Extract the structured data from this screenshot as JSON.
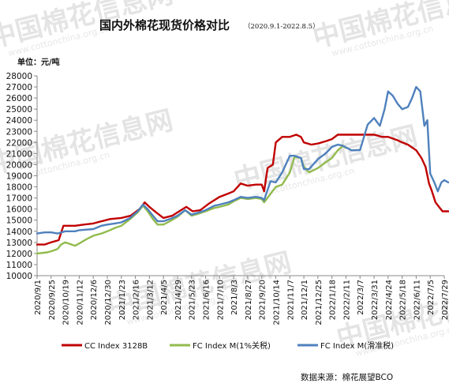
{
  "header": {
    "title": "国内外棉花现货价格对比",
    "subtitle": "（2020.9.1-2022.8.5）",
    "unit_label": "单位：元/吨"
  },
  "source_label": "数据来源：棉花展望BCO",
  "watermark": {
    "brand": "中国棉花信息网",
    "url": "www.cottonchina.org.cn"
  },
  "chart_data": {
    "type": "line",
    "title": "国内外棉花现货价格对比",
    "subtitle": "（2020.9.1-2022.8.5）",
    "ylabel": "单位：元/吨",
    "ylim": [
      10000,
      28000
    ],
    "yticks": [
      10000,
      11000,
      12000,
      13000,
      14000,
      15000,
      16000,
      17000,
      18000,
      19000,
      20000,
      21000,
      22000,
      23000,
      24000,
      25000,
      26000,
      27000,
      28000
    ],
    "xlim": [
      "2020-09-01",
      "2022-07-29"
    ],
    "x_tick_labels": [
      "2020/9/1",
      "2020/9/25",
      "2020/10/19",
      "2020/11/12",
      "2020/12/6",
      "2020/12/30",
      "2021/1/23",
      "2021/2/16",
      "2021/3/12",
      "2021/4/5",
      "2021/4/29",
      "2021/5/23",
      "2021/6/16",
      "2021/7/10",
      "2021/8/3",
      "2021/8/27",
      "2021/9/20",
      "2021/10/14",
      "2021/11/7",
      "2021/12/1",
      "2021/12/25",
      "2022/1/18",
      "2022/2/11",
      "2022/3/7",
      "2022/3/31",
      "2022/4/24",
      "2022/5/18",
      "2022/6/11",
      "2022/7/5",
      "2022/7/29"
    ],
    "grid": false,
    "legend_position": "bottom",
    "series": [
      {
        "name": "CC Index 3128B",
        "color": "#c00000",
        "points": [
          [
            "2020-09-01",
            12800
          ],
          [
            "2020-09-14",
            12800
          ],
          [
            "2020-09-25",
            13000
          ],
          [
            "2020-10-08",
            13200
          ],
          [
            "2020-10-16",
            14500
          ],
          [
            "2020-10-22",
            14500
          ],
          [
            "2020-11-05",
            14500
          ],
          [
            "2020-11-20",
            14600
          ],
          [
            "2020-12-06",
            14700
          ],
          [
            "2020-12-20",
            14900
          ],
          [
            "2021-01-04",
            15100
          ],
          [
            "2021-01-23",
            15200
          ],
          [
            "2021-02-08",
            15400
          ],
          [
            "2021-02-23",
            16000
          ],
          [
            "2021-03-04",
            16600
          ],
          [
            "2021-03-12",
            16200
          ],
          [
            "2021-03-26",
            15600
          ],
          [
            "2021-04-05",
            15200
          ],
          [
            "2021-04-20",
            15400
          ],
          [
            "2021-04-29",
            15700
          ],
          [
            "2021-05-14",
            16200
          ],
          [
            "2021-05-25",
            15800
          ],
          [
            "2021-06-07",
            15900
          ],
          [
            "2021-06-22",
            16500
          ],
          [
            "2021-07-10",
            17100
          ],
          [
            "2021-07-25",
            17400
          ],
          [
            "2021-08-03",
            17600
          ],
          [
            "2021-08-15",
            18300
          ],
          [
            "2021-08-27",
            18100
          ],
          [
            "2021-09-10",
            18200
          ],
          [
            "2021-09-20",
            18200
          ],
          [
            "2021-09-24",
            17600
          ],
          [
            "2021-09-30",
            19700
          ],
          [
            "2021-10-09",
            20000
          ],
          [
            "2021-10-14",
            22000
          ],
          [
            "2021-10-25",
            22500
          ],
          [
            "2021-11-07",
            22500
          ],
          [
            "2021-11-18",
            22700
          ],
          [
            "2021-11-26",
            22500
          ],
          [
            "2021-12-01",
            22000
          ],
          [
            "2021-12-14",
            21800
          ],
          [
            "2021-12-25",
            21900
          ],
          [
            "2022-01-07",
            22100
          ],
          [
            "2022-01-18",
            22300
          ],
          [
            "2022-01-28",
            22700
          ],
          [
            "2022-02-11",
            22700
          ],
          [
            "2022-02-25",
            22700
          ],
          [
            "2022-03-07",
            22700
          ],
          [
            "2022-03-21",
            22700
          ],
          [
            "2022-03-31",
            22700
          ],
          [
            "2022-04-14",
            22500
          ],
          [
            "2022-04-24",
            22500
          ],
          [
            "2022-05-10",
            22200
          ],
          [
            "2022-05-18",
            22000
          ],
          [
            "2022-05-28",
            21800
          ],
          [
            "2022-06-11",
            21300
          ],
          [
            "2022-06-20",
            20600
          ],
          [
            "2022-06-27",
            19800
          ],
          [
            "2022-07-03",
            18300
          ],
          [
            "2022-07-08",
            17600
          ],
          [
            "2022-07-14",
            16600
          ],
          [
            "2022-07-20",
            16200
          ],
          [
            "2022-07-26",
            15800
          ],
          [
            "2022-08-05",
            15800
          ]
        ]
      },
      {
        "name": "FC Index M(1%关税)",
        "color": "#92bb4e",
        "points": [
          [
            "2020-09-01",
            12000
          ],
          [
            "2020-09-18",
            12100
          ],
          [
            "2020-09-25",
            12200
          ],
          [
            "2020-10-06",
            12400
          ],
          [
            "2020-10-12",
            12800
          ],
          [
            "2020-10-19",
            13000
          ],
          [
            "2020-11-05",
            12700
          ],
          [
            "2020-11-12",
            12900
          ],
          [
            "2020-11-25",
            13300
          ],
          [
            "2020-12-06",
            13600
          ],
          [
            "2020-12-20",
            13800
          ],
          [
            "2020-12-30",
            14000
          ],
          [
            "2021-01-12",
            14300
          ],
          [
            "2021-01-23",
            14500
          ],
          [
            "2021-02-07",
            15100
          ],
          [
            "2021-02-20",
            15700
          ],
          [
            "2021-03-01",
            16300
          ],
          [
            "2021-03-09",
            15800
          ],
          [
            "2021-03-18",
            15100
          ],
          [
            "2021-03-26",
            14600
          ],
          [
            "2021-04-05",
            14600
          ],
          [
            "2021-04-16",
            14900
          ],
          [
            "2021-04-29",
            15300
          ],
          [
            "2021-05-12",
            15900
          ],
          [
            "2021-05-23",
            15400
          ],
          [
            "2021-06-05",
            15600
          ],
          [
            "2021-06-16",
            15800
          ],
          [
            "2021-07-01",
            16100
          ],
          [
            "2021-07-10",
            16200
          ],
          [
            "2021-07-25",
            16400
          ],
          [
            "2021-08-03",
            16700
          ],
          [
            "2021-08-15",
            17000
          ],
          [
            "2021-08-27",
            16900
          ],
          [
            "2021-09-10",
            17000
          ],
          [
            "2021-09-20",
            16900
          ],
          [
            "2021-09-24",
            16600
          ],
          [
            "2021-10-14",
            18000
          ],
          [
            "2021-10-25",
            18200
          ],
          [
            "2021-11-07",
            19300
          ],
          [
            "2021-11-15",
            20700
          ],
          [
            "2021-11-26",
            20600
          ],
          [
            "2021-12-01",
            19800
          ],
          [
            "2021-12-10",
            19300
          ],
          [
            "2021-12-25",
            19700
          ],
          [
            "2022-01-07",
            20200
          ],
          [
            "2022-01-18",
            20600
          ],
          [
            "2022-01-28",
            21300
          ],
          [
            "2022-02-06",
            21700
          ],
          [
            "2022-02-11",
            21500
          ]
        ]
      },
      {
        "name": "FC Index M(滑准税)",
        "color": "#4f81bd",
        "points": [
          [
            "2020-09-01",
            13800
          ],
          [
            "2020-09-14",
            13900
          ],
          [
            "2020-09-25",
            13900
          ],
          [
            "2020-10-06",
            13800
          ],
          [
            "2020-10-19",
            14000
          ],
          [
            "2020-11-05",
            14000
          ],
          [
            "2020-11-12",
            14100
          ],
          [
            "2020-12-06",
            14200
          ],
          [
            "2020-12-20",
            14500
          ],
          [
            "2020-12-30",
            14600
          ],
          [
            "2021-01-12",
            14700
          ],
          [
            "2021-01-23",
            14800
          ],
          [
            "2021-02-07",
            15200
          ],
          [
            "2021-02-20",
            15800
          ],
          [
            "2021-03-01",
            16400
          ],
          [
            "2021-03-09",
            16000
          ],
          [
            "2021-03-18",
            15400
          ],
          [
            "2021-03-26",
            14900
          ],
          [
            "2021-04-05",
            14900
          ],
          [
            "2021-04-16",
            15100
          ],
          [
            "2021-04-29",
            15400
          ],
          [
            "2021-05-12",
            15900
          ],
          [
            "2021-05-23",
            15500
          ],
          [
            "2021-06-05",
            15700
          ],
          [
            "2021-06-16",
            15900
          ],
          [
            "2021-07-01",
            16300
          ],
          [
            "2021-07-10",
            16400
          ],
          [
            "2021-07-25",
            16600
          ],
          [
            "2021-08-03",
            16800
          ],
          [
            "2021-08-15",
            17100
          ],
          [
            "2021-08-27",
            17000
          ],
          [
            "2021-09-10",
            17100
          ],
          [
            "2021-09-20",
            17000
          ],
          [
            "2021-09-24",
            16800
          ],
          [
            "2021-10-05",
            18500
          ],
          [
            "2021-10-14",
            18400
          ],
          [
            "2021-10-25",
            19300
          ],
          [
            "2021-11-07",
            20800
          ],
          [
            "2021-11-15",
            20800
          ],
          [
            "2021-11-26",
            20600
          ],
          [
            "2021-12-01",
            19600
          ],
          [
            "2021-12-10",
            19600
          ],
          [
            "2021-12-25",
            20500
          ],
          [
            "2022-01-07",
            21000
          ],
          [
            "2022-01-18",
            21600
          ],
          [
            "2022-01-28",
            21800
          ],
          [
            "2022-02-06",
            21700
          ],
          [
            "2022-02-20",
            21300
          ],
          [
            "2022-03-07",
            21300
          ],
          [
            "2022-03-20",
            23600
          ],
          [
            "2022-03-31",
            24200
          ],
          [
            "2022-04-10",
            23500
          ],
          [
            "2022-04-18",
            25000
          ],
          [
            "2022-04-24",
            26600
          ],
          [
            "2022-05-02",
            26200
          ],
          [
            "2022-05-10",
            25500
          ],
          [
            "2022-05-18",
            25000
          ],
          [
            "2022-05-28",
            25200
          ],
          [
            "2022-06-04",
            26000
          ],
          [
            "2022-06-11",
            27000
          ],
          [
            "2022-06-18",
            26600
          ],
          [
            "2022-06-25",
            23500
          ],
          [
            "2022-06-30",
            24000
          ],
          [
            "2022-07-05",
            19200
          ],
          [
            "2022-07-12",
            18400
          ],
          [
            "2022-07-18",
            17600
          ],
          [
            "2022-07-24",
            18400
          ],
          [
            "2022-07-29",
            18600
          ],
          [
            "2022-08-05",
            18400
          ]
        ]
      }
    ]
  }
}
